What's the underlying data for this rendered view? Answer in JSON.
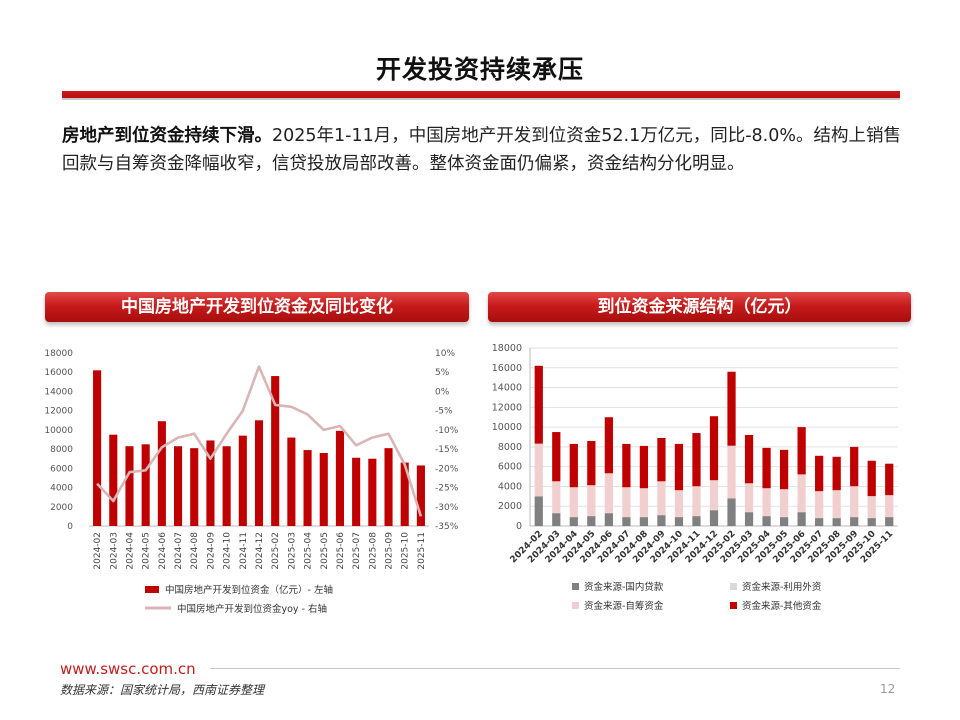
{
  "slide": {
    "title": "开发投资持续承压",
    "summary_bold": "房地产到位资金持续下滑。",
    "summary_text": "2025年1-11月，中国房地产开发到位资金52.1万亿元，同比-8.0%。结构上销售回款与自筹资金降幅收窄，信贷投放局部改善。整体资金面仍偏紧，资金结构分化明显。",
    "website": "www.swsc.com.cn",
    "source": "数据来源：国家统计局，西南证券整理",
    "page_number": "12"
  },
  "colors": {
    "accent": "#c00000",
    "line": "#d9b5b5",
    "domestic_loan": "#808080",
    "foreign": "#d9d9d9",
    "self_raised": "#f2cfcf",
    "other": "#c00000"
  },
  "chart_data": [
    {
      "type": "bar",
      "title": "中国房地产开发到位资金及同比变化",
      "categories": [
        "2024-02",
        "2024-03",
        "2024-04",
        "2024-05",
        "2024-06",
        "2024-07",
        "2024-08",
        "2024-09",
        "2024-10",
        "2024-11",
        "2024-12",
        "2025-02",
        "2025-03",
        "2025-04",
        "2025-05",
        "2025-06",
        "2025-07",
        "2025-08",
        "2025-09",
        "2025-10",
        "2025-11"
      ],
      "y_left_lim": [
        0,
        18000
      ],
      "y_left_ticks": [
        "0",
        "2000",
        "4000",
        "6000",
        "8000",
        "10000",
        "12000",
        "14000",
        "16000",
        "18000"
      ],
      "y_right_lim": [
        -35,
        10
      ],
      "y_right_ticks": [
        "-35%",
        "-30%",
        "-25%",
        "-20%",
        "-15%",
        "-10%",
        "-5%",
        "0%",
        "5%",
        "10%"
      ],
      "series": [
        {
          "name": "中国房地产开发到位资金（亿元）- 左轴",
          "kind": "bar",
          "axis": "left",
          "values": [
            16200,
            9500,
            8300,
            8500,
            10900,
            8300,
            8100,
            8900,
            8300,
            9400,
            11000,
            15600,
            9200,
            7900,
            7600,
            9900,
            7100,
            7000,
            8100,
            6600,
            6300
          ]
        },
        {
          "name": "中国房地产开发到位资金yoy - 右轴",
          "kind": "line",
          "axis": "right",
          "values": [
            -24,
            -28.5,
            -21,
            -20.5,
            -14.5,
            -12,
            -11,
            -17.5,
            -11,
            -5,
            6.5,
            -3.5,
            -4,
            -6,
            -10,
            -9,
            -14,
            -12,
            -11,
            -19,
            -32.5
          ]
        }
      ]
    },
    {
      "type": "bar",
      "stacked": true,
      "title": "到位资金来源结构（亿元）",
      "categories": [
        "2024-02",
        "2024-03",
        "2024-04",
        "2024-05",
        "2024-06",
        "2024-07",
        "2024-08",
        "2024-09",
        "2024-10",
        "2024-11",
        "2024-12",
        "2025-02",
        "2025-03",
        "2025-04",
        "2025-05",
        "2025-06",
        "2025-07",
        "2025-08",
        "2025-09",
        "2025-10",
        "2025-11"
      ],
      "y_lim": [
        0,
        18000
      ],
      "y_ticks": [
        "0",
        "2000",
        "4000",
        "6000",
        "8000",
        "10000",
        "12000",
        "14000",
        "16000",
        "18000"
      ],
      "series": [
        {
          "name": "资金来源-国内贷款",
          "values": [
            3000,
            1300,
            900,
            1000,
            1300,
            900,
            900,
            1100,
            900,
            1000,
            1600,
            2800,
            1400,
            1000,
            900,
            1400,
            800,
            800,
            900,
            800,
            900
          ]
        },
        {
          "name": "资金来源-利用外资",
          "values": [
            30,
            20,
            20,
            20,
            30,
            20,
            20,
            20,
            20,
            20,
            30,
            20,
            20,
            20,
            20,
            20,
            20,
            20,
            20,
            20,
            20
          ]
        },
        {
          "name": "资金来源-自筹资金",
          "values": [
            5300,
            3200,
            3000,
            3100,
            4000,
            3000,
            2900,
            3400,
            2700,
            3000,
            3000,
            5300,
            2900,
            2800,
            2800,
            3800,
            2700,
            2800,
            3100,
            2200,
            2200
          ]
        },
        {
          "name": "资金来源-其他资金",
          "values": [
            7870,
            4980,
            4380,
            4480,
            5670,
            4380,
            4280,
            4380,
            4680,
            5380,
            6470,
            7480,
            4880,
            4080,
            3980,
            4780,
            3580,
            3380,
            3980,
            3580,
            3180
          ]
        }
      ]
    }
  ]
}
